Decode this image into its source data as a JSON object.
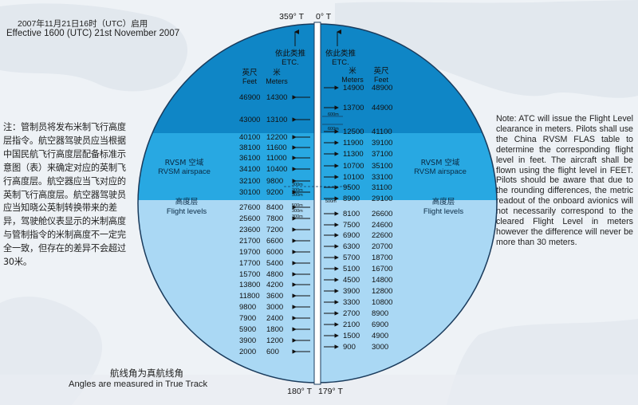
{
  "header": {
    "effective_cn": "2007年11月21日16时（UTC）启用",
    "effective_en": "Effective 1600 (UTC) 21st November 2007"
  },
  "compass": {
    "north_left": "359° T",
    "north_right": "0° T",
    "south_left": "180° T",
    "south_right": "179° T"
  },
  "note_cn": "注：管制员将发布米制飞行高度层指令。航空器驾驶员应当根据中国民航飞行高度层配备标准示意图（表）来确定对应的英制飞行高度层。航空器应当飞对应的英制飞行高度层。航空器驾驶员应当知晓公英制转换带来的差异，驾驶舱仪表显示的米制高度与管制指令的米制高度不一定完全一致，但存在的差异不会超过30米。",
  "note_en": "Note: ATC will issue the Flight Level clearance in meters. Pilots shall use the China RVSM FLAS table to determine the corresponding flight level in feet. The aircraft shall be flown using the flight level in FEET. Pilots should be aware that due to the rounding differences, the metric readout of the onboard avionics will not necessarily correspond to the cleared Flight Level in meters however the difference will never be more than 30 meters.",
  "footer": {
    "cn": "航线角为真航线角",
    "en": "Angles are measured in True Track"
  },
  "etc": {
    "cn": "依此类推",
    "en": "ETC."
  },
  "col_headers": {
    "feet_cn": "英尺",
    "feet_en": "Feet",
    "meters_cn": "米",
    "meters_en": "Meters"
  },
  "zones": {
    "rvsm_cn": "RVSM 空域",
    "rvsm_en": "RVSM airspace",
    "fl_cn": "高度层",
    "fl_en": "Flight levels"
  },
  "separation_labels": {
    "s600": "600m",
    "s300": "300m",
    "s500": "500m"
  },
  "colors": {
    "top_zone": "#0f86c6",
    "rvsm_zone": "#28a8e2",
    "fl_zone": "#aad8f4"
  },
  "left_levels": [
    {
      "feet": "46900",
      "meters": "14300"
    },
    {
      "feet": "43000",
      "meters": "13100"
    },
    {
      "feet": "40100",
      "meters": "12200"
    },
    {
      "feet": "38100",
      "meters": "11600"
    },
    {
      "feet": "36100",
      "meters": "11000"
    },
    {
      "feet": "34100",
      "meters": "10400"
    },
    {
      "feet": "32100",
      "meters": "9800"
    },
    {
      "feet": "30100",
      "meters": "9200"
    },
    {
      "feet": "27600",
      "meters": "8400"
    },
    {
      "feet": "25600",
      "meters": "7800"
    },
    {
      "feet": "23600",
      "meters": "7200"
    },
    {
      "feet": "21700",
      "meters": "6600"
    },
    {
      "feet": "19700",
      "meters": "6000"
    },
    {
      "feet": "17700",
      "meters": "5400"
    },
    {
      "feet": "15700",
      "meters": "4800"
    },
    {
      "feet": "13800",
      "meters": "4200"
    },
    {
      "feet": "11800",
      "meters": "3600"
    },
    {
      "feet": "9800",
      "meters": "3000"
    },
    {
      "feet": "7900",
      "meters": "2400"
    },
    {
      "feet": "5900",
      "meters": "1800"
    },
    {
      "feet": "3900",
      "meters": "1200"
    },
    {
      "feet": "2000",
      "meters": "600"
    }
  ],
  "right_levels": [
    {
      "meters": "14900",
      "feet": "48900"
    },
    {
      "meters": "13700",
      "feet": "44900"
    },
    {
      "meters": "12500",
      "feet": "41100"
    },
    {
      "meters": "11900",
      "feet": "39100"
    },
    {
      "meters": "11300",
      "feet": "37100"
    },
    {
      "meters": "10700",
      "feet": "35100"
    },
    {
      "meters": "10100",
      "feet": "33100"
    },
    {
      "meters": "9500",
      "feet": "31100"
    },
    {
      "meters": "8900",
      "feet": "29100"
    },
    {
      "meters": "8100",
      "feet": "26600"
    },
    {
      "meters": "7500",
      "feet": "24600"
    },
    {
      "meters": "6900",
      "feet": "22600"
    },
    {
      "meters": "6300",
      "feet": "20700"
    },
    {
      "meters": "5700",
      "feet": "18700"
    },
    {
      "meters": "5100",
      "feet": "16700"
    },
    {
      "meters": "4500",
      "feet": "14800"
    },
    {
      "meters": "3900",
      "feet": "12800"
    },
    {
      "meters": "3300",
      "feet": "10800"
    },
    {
      "meters": "2700",
      "feet": "8900"
    },
    {
      "meters": "2100",
      "feet": "6900"
    },
    {
      "meters": "1500",
      "feet": "4900"
    },
    {
      "meters": "900",
      "feet": "3000"
    }
  ]
}
